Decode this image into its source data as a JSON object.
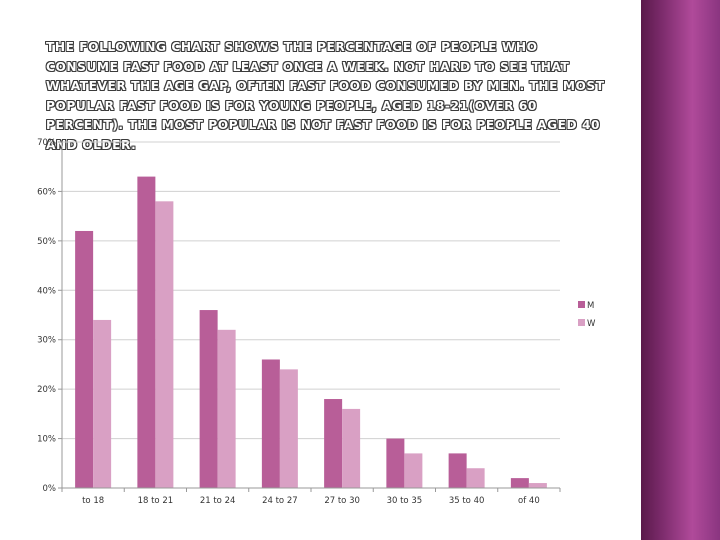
{
  "slide": {
    "heading": "The following chart shows the percentage of people who consume fast food at least once a week. Not hard to see that whatever the age gap, often fast food consumed by men. The most popular fast food is for young people, aged 18-21(over 60 percent). The most popular is not fast food is for people aged 40 and older.",
    "accent_band_color": "#9b3f8a"
  },
  "chart_data": {
    "type": "bar",
    "categories": [
      "to 18",
      "18 to 21",
      "21 to 24",
      "24 to 27",
      "27 to 30",
      "30 to 35",
      "35 to 40",
      "of 40"
    ],
    "series": [
      {
        "name": "M",
        "values": [
          52,
          63,
          36,
          26,
          18,
          10,
          7,
          2
        ],
        "color": "#b85e98"
      },
      {
        "name": "W",
        "values": [
          34,
          58,
          32,
          24,
          16,
          7,
          4,
          1
        ],
        "color": "#d9a0c4"
      }
    ],
    "yticks": [
      "0%",
      "10%",
      "20%",
      "30%",
      "40%",
      "50%",
      "60%",
      "70%"
    ],
    "ylim": [
      0,
      70
    ],
    "grid": true,
    "legend_position": "right"
  }
}
